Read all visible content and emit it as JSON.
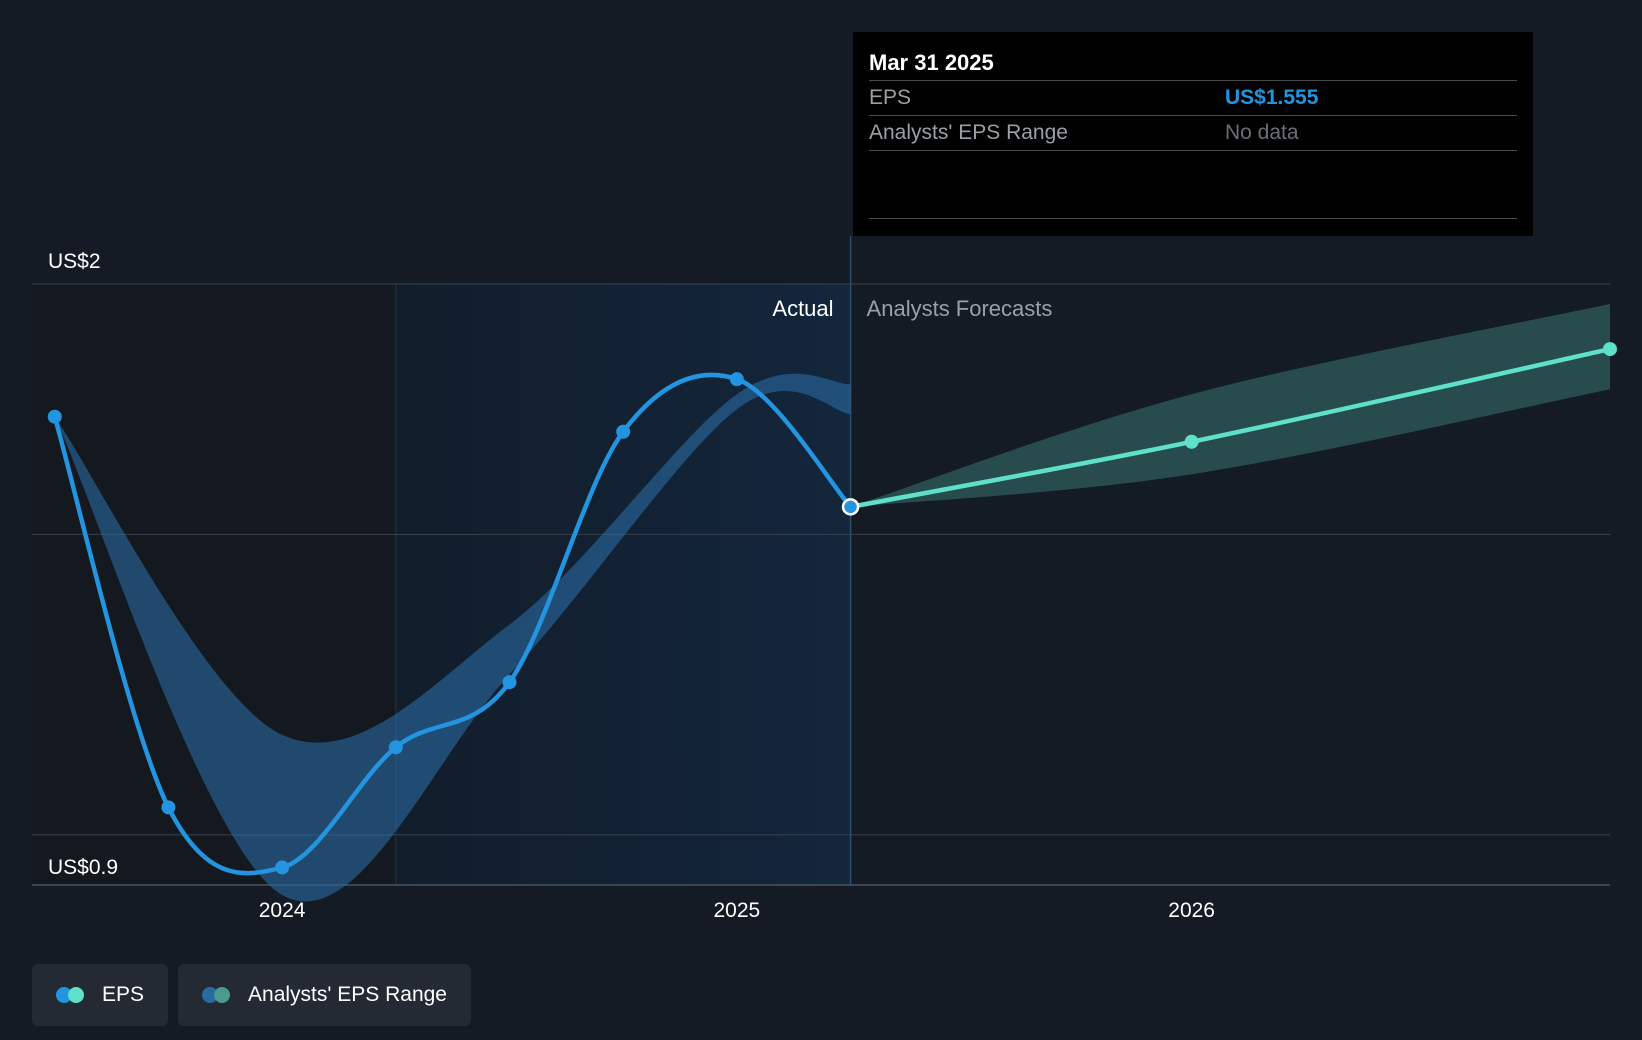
{
  "colors": {
    "background": "#151b24",
    "actual_line": "#2394df",
    "forecast_line": "#5ee0cb",
    "actual_band": "#2a6aa3",
    "forecast_band": "#2f5d5c",
    "actual_region": "#13263b",
    "grid": "#3a424d"
  },
  "tooltip": {
    "date": "Mar 31 2025",
    "rows": [
      {
        "label": "EPS",
        "value": "US$1.555"
      },
      {
        "label": "Analysts' EPS Range",
        "value": "No data"
      }
    ]
  },
  "legend": [
    {
      "label": "EPS",
      "icon": "eps-legend-icon",
      "colors": [
        "#2394df",
        "#5ee0cb"
      ]
    },
    {
      "label": "Analysts' EPS Range",
      "icon": "range-legend-icon",
      "colors": [
        "#2a6aa3",
        "#4a9a90"
      ]
    }
  ],
  "chart_data": {
    "type": "line",
    "y_axis": {
      "labels": [
        "US$2",
        "US$0.9"
      ],
      "ylim": [
        0.8,
        2.0
      ],
      "gridlines": [
        0.9,
        1.5,
        2.0
      ]
    },
    "x_axis": {
      "ticks": [
        "2024",
        "2025",
        "2026"
      ],
      "xlim": [
        2023.45,
        2026.92
      ]
    },
    "section_labels": {
      "actual": "Actual",
      "forecast": "Analysts Forecasts"
    },
    "divider_x": 2025.25,
    "series": [
      {
        "name": "EPS",
        "segment": "actual",
        "points": [
          {
            "x": 2023.5,
            "y": 1.735
          },
          {
            "x": 2023.75,
            "y": 0.955
          },
          {
            "x": 2024.0,
            "y": 0.835
          },
          {
            "x": 2024.25,
            "y": 1.075
          },
          {
            "x": 2024.5,
            "y": 1.205
          },
          {
            "x": 2024.75,
            "y": 1.705
          },
          {
            "x": 2025.0,
            "y": 1.81
          },
          {
            "x": 2025.25,
            "y": 1.555
          }
        ]
      },
      {
        "name": "EPS",
        "segment": "forecast",
        "points": [
          {
            "x": 2025.25,
            "y": 1.555
          },
          {
            "x": 2026.0,
            "y": 1.685
          },
          {
            "x": 2026.92,
            "y": 1.87
          }
        ]
      }
    ],
    "ranges": [
      {
        "name": "Analysts' EPS Range",
        "segment": "actual",
        "upper": [
          [
            2023.5,
            1.735
          ],
          [
            2024.0,
            1.1
          ],
          [
            2024.5,
            1.32
          ],
          [
            2025.0,
            1.78
          ],
          [
            2025.25,
            1.8
          ]
        ],
        "lower": [
          [
            2023.5,
            1.735
          ],
          [
            2024.0,
            0.78
          ],
          [
            2024.5,
            1.22
          ],
          [
            2025.0,
            1.75
          ],
          [
            2025.25,
            1.74
          ]
        ]
      },
      {
        "name": "Analysts' EPS Range",
        "segment": "forecast",
        "upper": [
          [
            2025.25,
            1.555
          ],
          [
            2026.0,
            1.78
          ],
          [
            2026.92,
            1.96
          ]
        ],
        "lower": [
          [
            2025.25,
            1.555
          ],
          [
            2026.0,
            1.62
          ],
          [
            2026.92,
            1.79
          ]
        ]
      }
    ]
  }
}
